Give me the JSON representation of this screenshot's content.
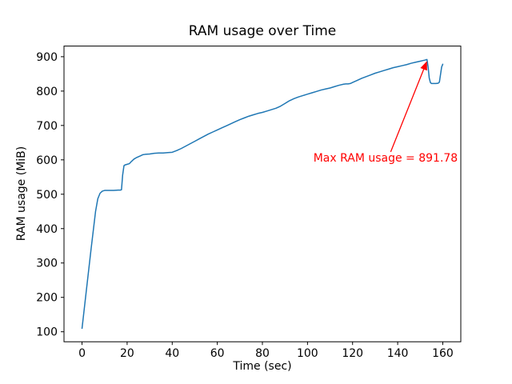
{
  "chart_data": {
    "type": "line",
    "title": "RAM usage over Time",
    "xlabel": "Time (sec)",
    "ylabel": "RAM usage (MiB)",
    "xticks": [
      0,
      20,
      40,
      60,
      80,
      100,
      120,
      140,
      160
    ],
    "yticks": [
      100,
      200,
      300,
      400,
      500,
      600,
      700,
      800,
      900
    ],
    "xlim": [
      -8,
      168
    ],
    "ylim": [
      70.9,
      930.9
    ],
    "grid": false,
    "legend": "none",
    "line_color": "#1f77b4",
    "line_width": 1.5,
    "series": [
      {
        "x": [
          0,
          2,
          4,
          6,
          7,
          8,
          9,
          10,
          12,
          14,
          16,
          17,
          17.5,
          18,
          18.6,
          19,
          20,
          21,
          22,
          23,
          24,
          25,
          26,
          27,
          28,
          30,
          32,
          34,
          36,
          38,
          40,
          42,
          44,
          46,
          48,
          50,
          52,
          54,
          56,
          58,
          60,
          62,
          64,
          66,
          68,
          70,
          72,
          74,
          76,
          78,
          80,
          82,
          84,
          86,
          88,
          90,
          92,
          94,
          96,
          98,
          100,
          102,
          104,
          106,
          108,
          110,
          112,
          114,
          116,
          117,
          118,
          119,
          120,
          122,
          124,
          126,
          128,
          130,
          132,
          134,
          136,
          138,
          140,
          142,
          144,
          146,
          148,
          150,
          151,
          152,
          153,
          153.5,
          154,
          154.5,
          155,
          156,
          157,
          158,
          158.5,
          159,
          159.5,
          160
        ],
        "y": [
          110,
          225,
          340,
          450,
          487,
          503,
          509,
          511,
          511,
          511,
          512,
          512,
          513,
          555,
          583,
          585,
          587,
          589,
          596,
          602,
          606,
          609,
          612,
          615,
          616,
          617,
          619,
          620,
          620,
          621,
          622,
          627,
          633,
          640,
          647,
          654,
          661,
          668,
          675,
          681,
          687,
          693,
          699,
          705,
          711,
          717,
          722,
          727,
          731,
          735,
          738,
          742,
          746,
          750,
          756,
          764,
          772,
          778,
          783,
          787,
          791,
          795,
          799,
          803,
          806,
          809,
          813,
          817,
          820,
          821,
          821,
          822,
          825,
          831,
          837,
          842,
          847,
          852,
          856,
          860,
          864,
          868,
          871,
          874,
          877,
          881,
          884,
          887,
          888.5,
          890,
          891.78,
          870,
          838,
          825,
          822,
          822,
          822,
          823,
          826,
          848,
          870,
          878
        ]
      }
    ],
    "annotation": {
      "text": "Max RAM usage = 891.78",
      "color": "#ff0000",
      "xy": [
        153,
        891.78
      ],
      "text_xy": [
        102.6,
        590
      ],
      "arrow_tail_xy": [
        136.9,
        623
      ]
    }
  }
}
